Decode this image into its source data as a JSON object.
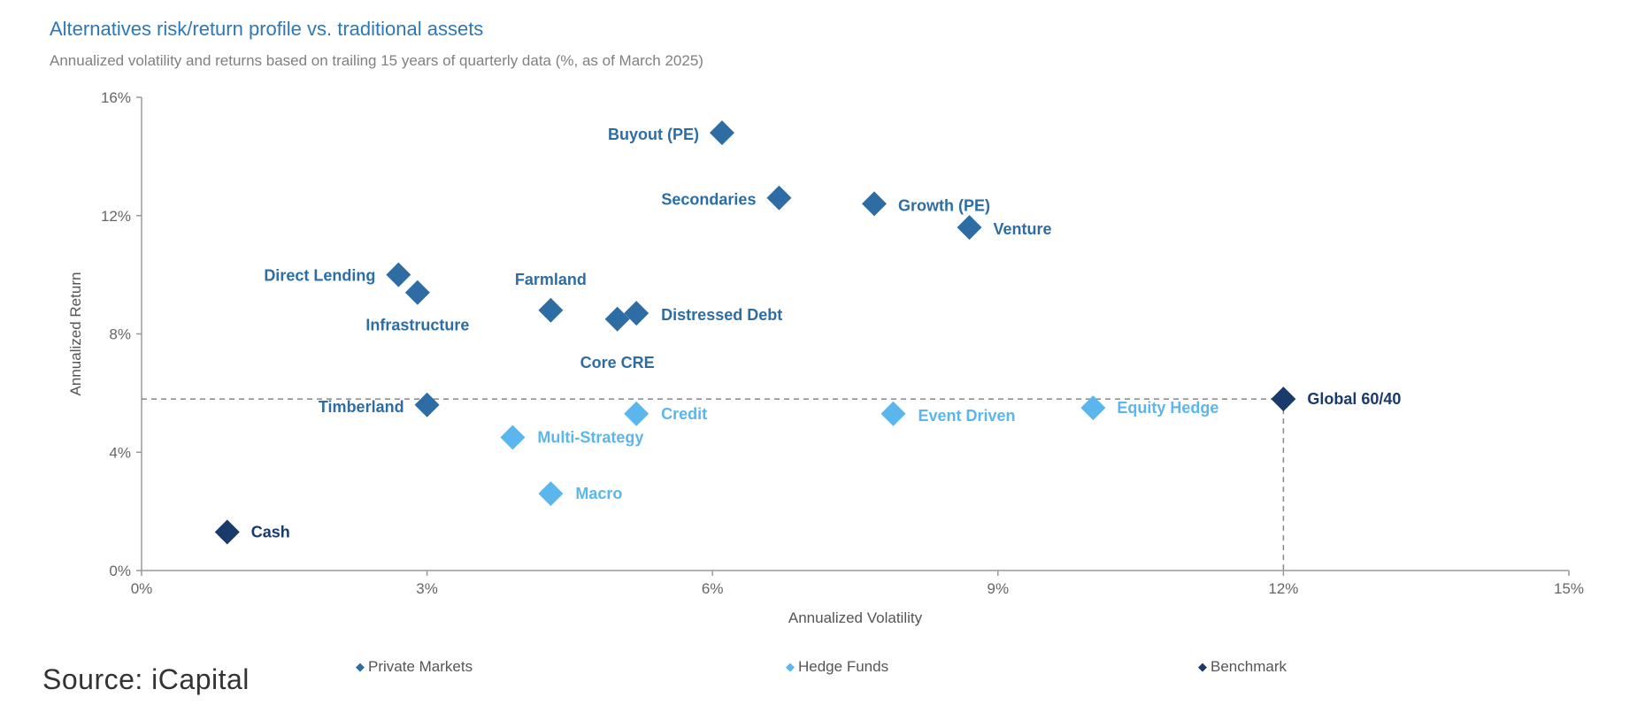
{
  "title": "Alternatives risk/return profile vs. traditional assets",
  "subtitle": "Annualized volatility and returns based on trailing 15 years of quarterly data (%, as of March 2025)",
  "source": "Source: iCapital",
  "colors": {
    "private_markets": "#2e6da4",
    "hedge_funds": "#5bb6ee",
    "benchmark": "#1a3a6b",
    "axis": "#999999",
    "reference_line": "#888888"
  },
  "chart_data": {
    "type": "scatter",
    "xlabel": "Annualized Volatility",
    "ylabel": "Annualized Return",
    "xlim": [
      0,
      15
    ],
    "ylim": [
      0,
      16
    ],
    "x_ticks": [
      0,
      3,
      6,
      9,
      12,
      15
    ],
    "y_ticks": [
      0,
      4,
      8,
      12,
      16
    ],
    "x_tick_labels": [
      "0%",
      "3%",
      "6%",
      "9%",
      "12%",
      "15%"
    ],
    "y_tick_labels": [
      "0%",
      "4%",
      "8%",
      "12%",
      "16%"
    ],
    "grid": false,
    "legend_position": "bottom",
    "reference_lines": {
      "x": 12.0,
      "y": 5.8,
      "style": "dashed"
    },
    "series": [
      {
        "name": "Private Markets",
        "color": "#2e6da4",
        "points": [
          {
            "label": "Buyout (PE)",
            "x": 6.1,
            "y": 14.8
          },
          {
            "label": "Secondaries",
            "x": 6.7,
            "y": 12.6
          },
          {
            "label": "Growth (PE)",
            "x": 7.7,
            "y": 12.4
          },
          {
            "label": "Venture",
            "x": 8.7,
            "y": 11.6
          },
          {
            "label": "Direct Lending",
            "x": 2.7,
            "y": 10.0
          },
          {
            "label": "Infrastructure",
            "x": 2.9,
            "y": 9.4
          },
          {
            "label": "Farmland",
            "x": 4.3,
            "y": 8.8
          },
          {
            "label": "Distressed Debt",
            "x": 5.2,
            "y": 8.7
          },
          {
            "label": "Core CRE",
            "x": 5.0,
            "y": 8.5
          },
          {
            "label": "Timberland",
            "x": 3.0,
            "y": 5.6
          }
        ]
      },
      {
        "name": "Hedge Funds",
        "color": "#5bb6ee",
        "points": [
          {
            "label": "Credit",
            "x": 5.2,
            "y": 5.3
          },
          {
            "label": "Multi-Strategy",
            "x": 3.9,
            "y": 4.5
          },
          {
            "label": "Macro",
            "x": 4.3,
            "y": 2.6
          },
          {
            "label": "Event Driven",
            "x": 7.9,
            "y": 5.3
          },
          {
            "label": "Equity Hedge",
            "x": 10.0,
            "y": 5.5
          }
        ]
      },
      {
        "name": "Benchmark",
        "color": "#1a3a6b",
        "points": [
          {
            "label": "Global 60/40",
            "x": 12.0,
            "y": 5.8
          },
          {
            "label": "Cash",
            "x": 0.9,
            "y": 1.3
          }
        ]
      }
    ]
  },
  "legend": [
    {
      "label": "Private Markets",
      "symbol": "◆"
    },
    {
      "label": "Hedge Funds",
      "symbol": "◆"
    },
    {
      "label": "Benchmark",
      "symbol": "◆"
    }
  ]
}
